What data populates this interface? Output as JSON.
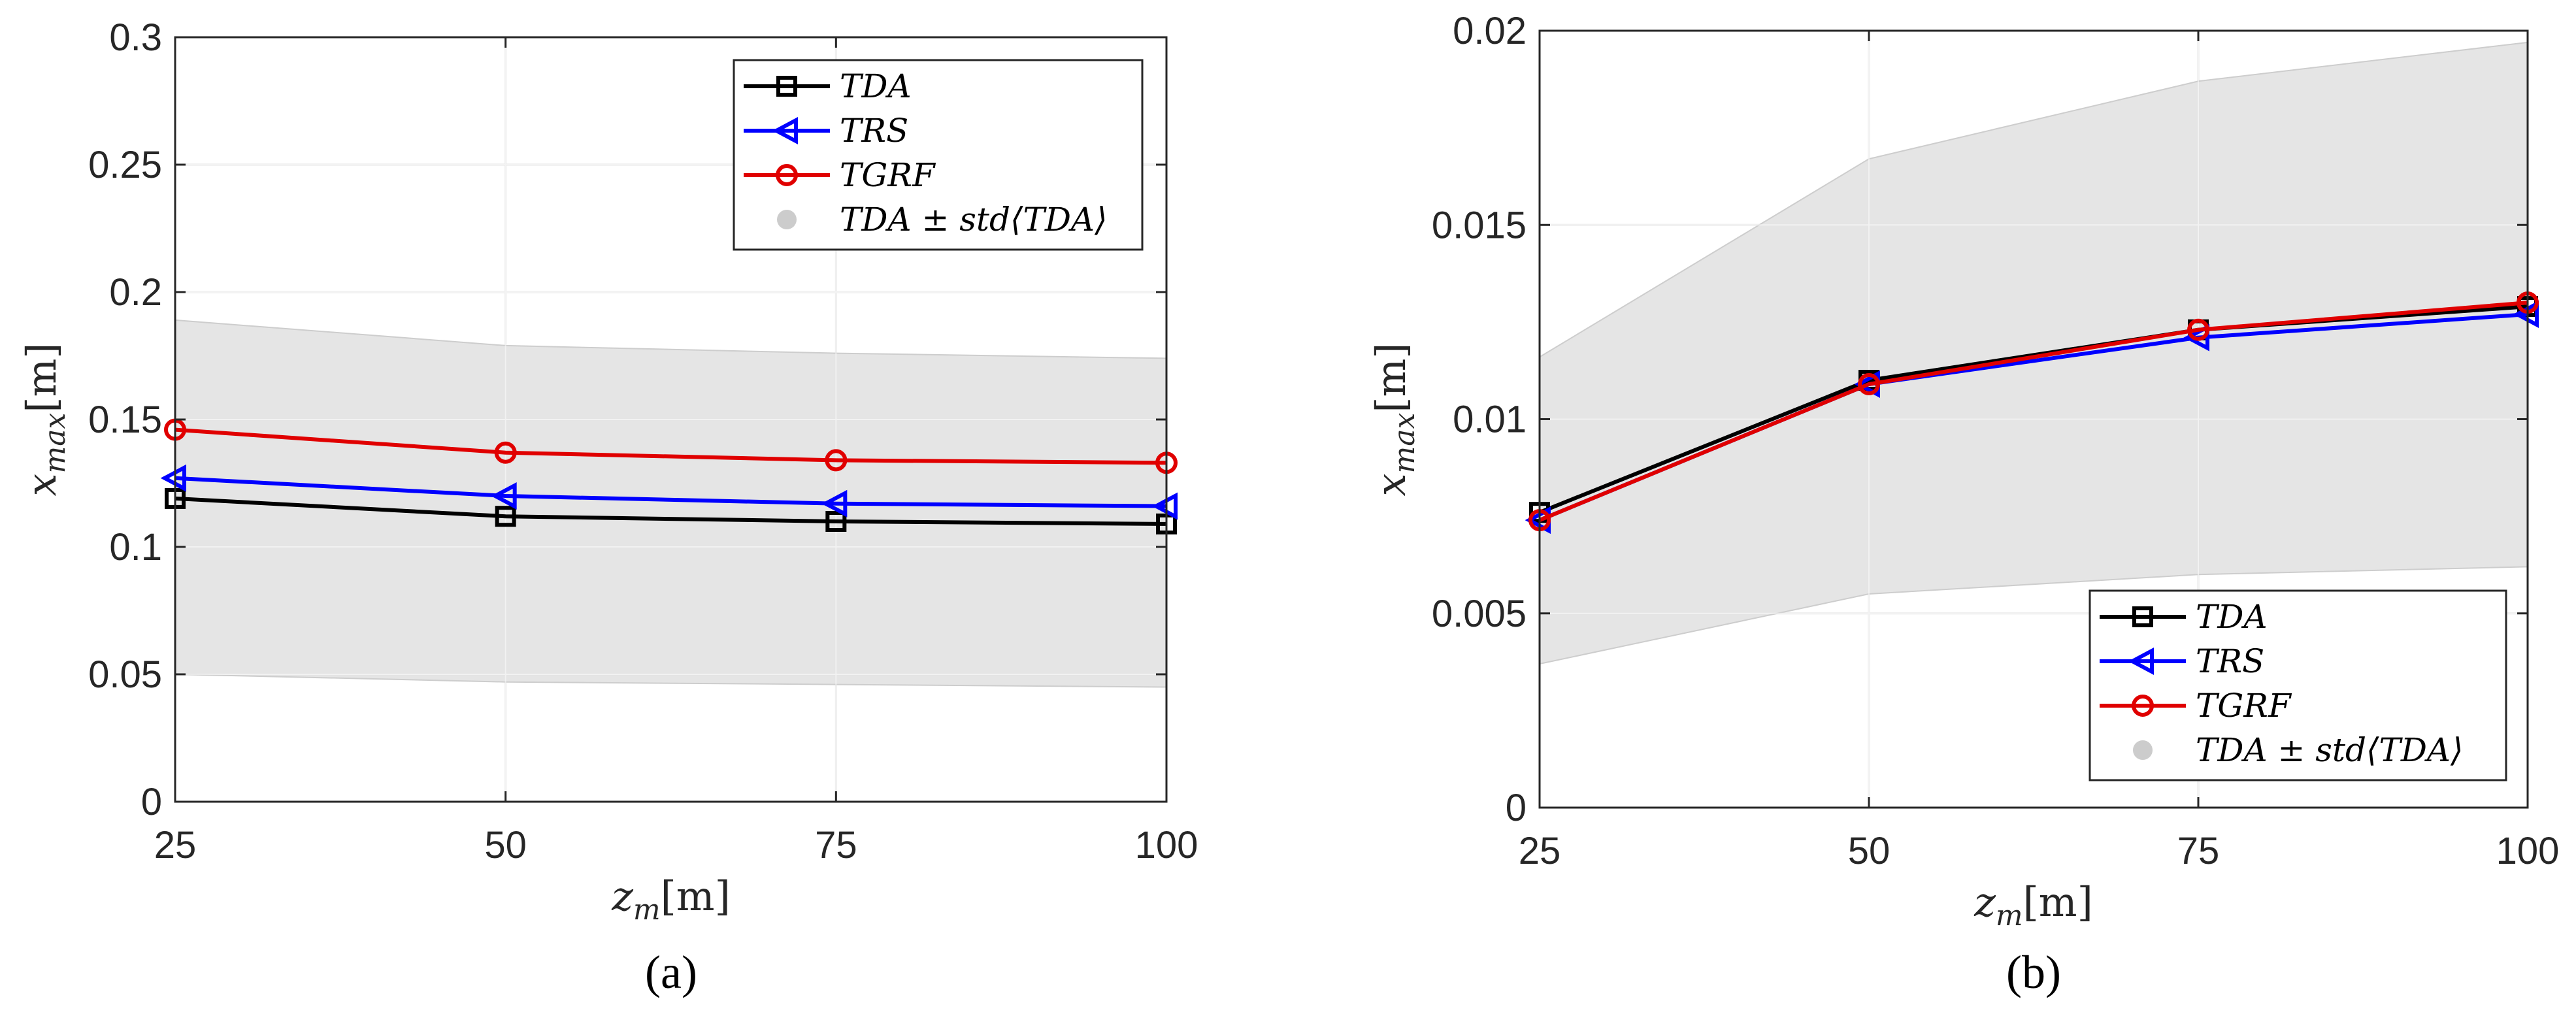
{
  "colors": {
    "tda": "#000000",
    "trs": "#0000ff",
    "tgrf": "#e00000",
    "band": "#e3e3e3",
    "band_edge": "#c9c9c9",
    "grid": "#e6e6e6",
    "axis": "#262626"
  },
  "chart_data": [
    {
      "type": "line",
      "panel_label": "(a)",
      "xlabel_var": "z_m",
      "xlabel_unit": "[m]",
      "ylabel_var": "x_max",
      "ylabel_unit": "[m]",
      "x": [
        25,
        50,
        75,
        100
      ],
      "xlim": [
        25,
        100
      ],
      "ylim": [
        0,
        0.3
      ],
      "xticks": [
        25,
        50,
        75,
        100
      ],
      "xtick_labels": [
        "25",
        "50",
        "75",
        "100"
      ],
      "yticks": [
        0,
        0.05,
        0.1,
        0.15,
        0.2,
        0.25,
        0.3
      ],
      "ytick_labels": [
        "0",
        "0.05",
        "0.1",
        "0.15",
        "0.2",
        "0.25",
        "0.3"
      ],
      "grid": true,
      "legend_position": "top-right",
      "series": [
        {
          "key": "tda",
          "name": "TDA",
          "marker": "square",
          "values": [
            0.119,
            0.112,
            0.11,
            0.109
          ]
        },
        {
          "key": "trs",
          "name": "TRS",
          "marker": "triangle-left",
          "values": [
            0.127,
            0.12,
            0.117,
            0.116
          ]
        },
        {
          "key": "tgrf",
          "name": "TGRF",
          "marker": "circle",
          "values": [
            0.146,
            0.137,
            0.134,
            0.133
          ]
        }
      ],
      "band": {
        "name": "TDA ± std⟨TDA⟩",
        "upper": [
          0.189,
          0.179,
          0.176,
          0.174
        ],
        "lower": [
          0.05,
          0.047,
          0.046,
          0.045
        ]
      }
    },
    {
      "type": "line",
      "panel_label": "(b)",
      "xlabel_var": "z_m",
      "xlabel_unit": "[m]",
      "ylabel_var": "x_max",
      "ylabel_unit": "[m]",
      "x": [
        25,
        50,
        75,
        100
      ],
      "xlim": [
        25,
        100
      ],
      "ylim": [
        0,
        0.02
      ],
      "xticks": [
        25,
        50,
        75,
        100
      ],
      "xtick_labels": [
        "25",
        "50",
        "75",
        "100"
      ],
      "yticks": [
        0,
        0.005,
        0.01,
        0.015,
        0.02
      ],
      "ytick_labels": [
        "0",
        "0.005",
        "0.01",
        "0.015",
        "0.02"
      ],
      "grid": true,
      "legend_position": "bottom-right",
      "series": [
        {
          "key": "tda",
          "name": "TDA",
          "marker": "square",
          "values": [
            0.0076,
            0.011,
            0.0123,
            0.0129
          ]
        },
        {
          "key": "trs",
          "name": "TRS",
          "marker": "triangle-left",
          "values": [
            0.0074,
            0.0109,
            0.0121,
            0.0127
          ]
        },
        {
          "key": "tgrf",
          "name": "TGRF",
          "marker": "circle",
          "values": [
            0.0074,
            0.0109,
            0.0123,
            0.013
          ]
        }
      ],
      "band": {
        "name": "TDA ± std⟨TDA⟩",
        "upper": [
          0.0116,
          0.0167,
          0.0187,
          0.0197
        ],
        "lower": [
          0.0037,
          0.0055,
          0.006,
          0.0062
        ]
      }
    }
  ]
}
